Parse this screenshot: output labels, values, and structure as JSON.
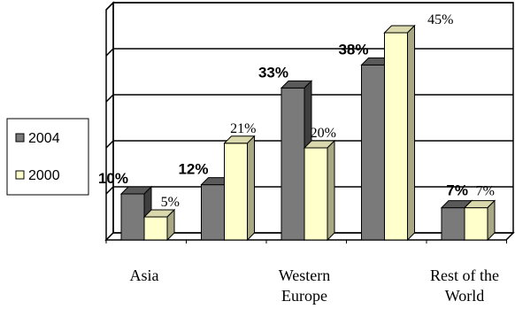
{
  "chart_data": {
    "type": "bar",
    "title": "",
    "xlabel": "",
    "ylabel": "",
    "ylim": [
      0,
      50
    ],
    "grid": true,
    "legend_position": "left",
    "categories": [
      "Asia",
      "",
      "Western Europe",
      "",
      "Rest of the World"
    ],
    "category_lines": [
      [
        "Asia"
      ],
      [
        ""
      ],
      [
        "Western",
        "Europe"
      ],
      [
        ""
      ],
      [
        "Rest of the",
        "World"
      ]
    ],
    "series": [
      {
        "name": "2004",
        "values": [
          10,
          12,
          33,
          38,
          7
        ],
        "labels": [
          "10%",
          "12%",
          "33%",
          "38%",
          "7%"
        ]
      },
      {
        "name": "2000",
        "values": [
          5,
          21,
          20,
          45,
          7
        ],
        "labels": [
          "5%",
          "21%",
          "20%",
          "45%",
          "7%"
        ]
      }
    ],
    "colors": {
      "2004_front": "#7a7a7a",
      "2004_top": "#5a5a5a",
      "2004_side": "#3e3e3e",
      "2000_front": "#ffffcc",
      "2000_top": "#d9d9ad",
      "2000_side": "#a8a884",
      "wall": "#ffffff",
      "grid": "#000000"
    }
  }
}
